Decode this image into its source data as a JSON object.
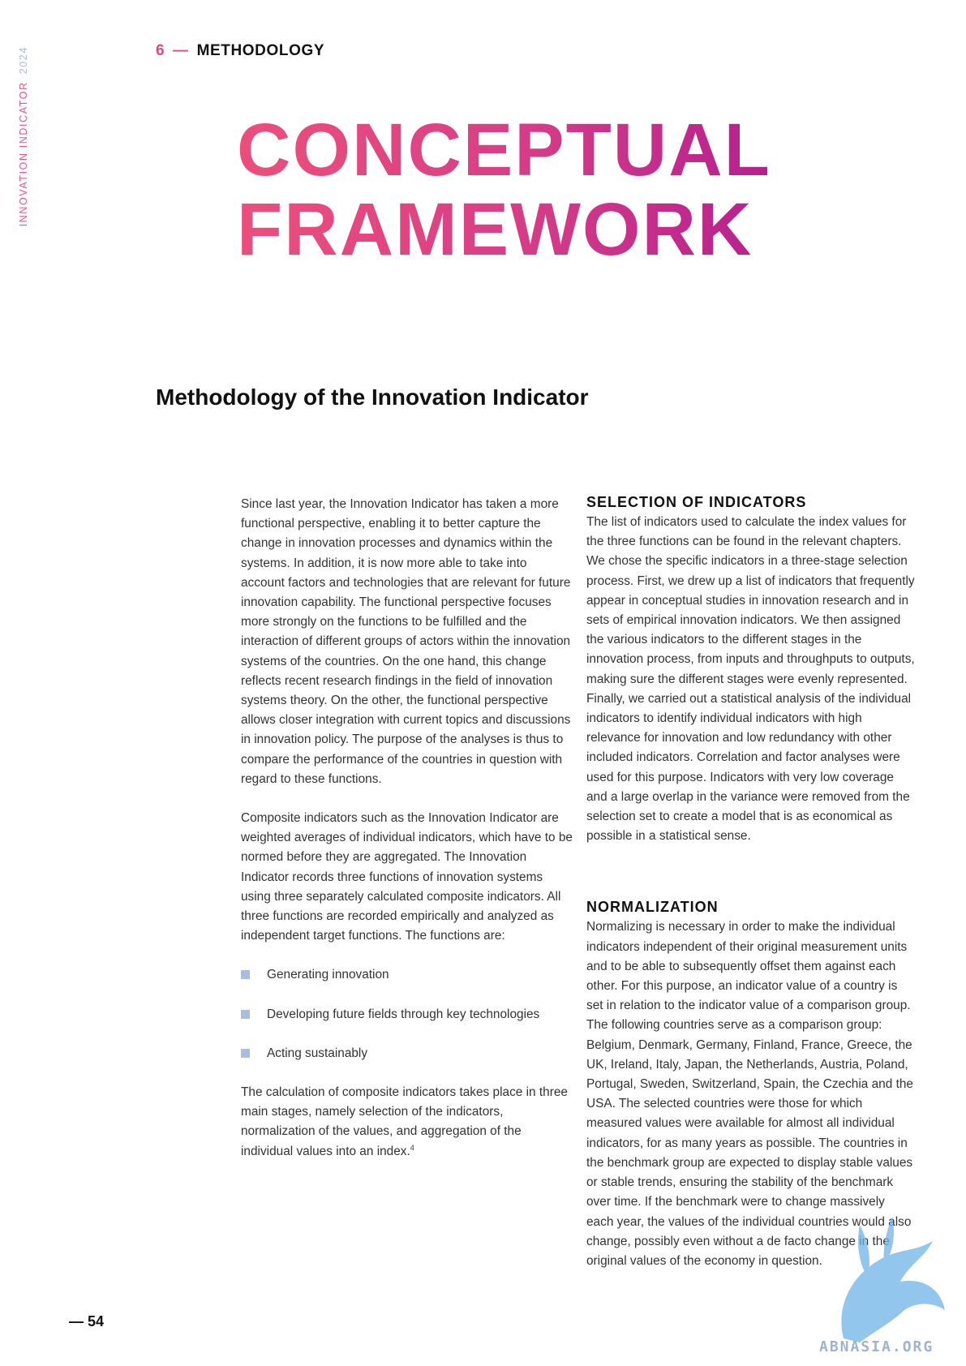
{
  "side_label": {
    "text": "INNOVATION INDICATOR",
    "year": "2024"
  },
  "section": {
    "number": "6",
    "dash": "—",
    "title": "METHODOLOGY"
  },
  "title": {
    "line1": "CONCEPTUAL",
    "line2": "FRAMEWORK"
  },
  "subtitle": "Methodology of the Innovation Indicator",
  "left_column": {
    "paragraph1": "Since last year, the Innovation Indicator has taken a more functional perspective, enabling it to better capture the change in innovation processes and dynamics within the systems. In addition, it is now more able to take into account factors and technologies that are relevant for future innovation capability. The functional perspective focuses more strongly on the functions to be fulfilled and the interaction of different groups of actors within the innovation systems of the countries. On the one hand, this change reflects recent research findings in the field of innovation systems theory. On the other, the functional perspective allows closer integration with current topics and discussions in innovation policy. The purpose of the analyses is thus to compare the performance of the countries in question with regard to these functions.",
    "paragraph2": "Composite indicators such as the Innovation Indicator are weighted averages of individual indicators, which have to be normed before they are aggregated. The Innovation Indicator records three functions of innovation systems using three separately calculated composite indicators. All three functions are recorded empirically and analyzed as independent target functions. The functions are:",
    "bullets": [
      "Generating innovation",
      "Developing future fields through key technologies",
      "Acting sustainably"
    ],
    "paragraph3": "The calculation of composite indicators takes place in three main stages, namely selection of the indicators, normalization of the values, and aggregation of the individual values into an index.",
    "footnote_ref": "4"
  },
  "right_column": {
    "heading1": "SELECTION OF INDICATORS",
    "paragraph1": "The list of indicators used to calculate the index values for the three functions can be found in the relevant chapters. We chose the specific indicators in a three-stage selection process. First, we drew up a list of indicators that frequently appear in conceptual studies in innovation research and in sets of empirical innovation indicators. We then assigned the various indicators to the different stages in the innovation process, from inputs and throughputs to outputs, making sure the different stages were evenly represented. Finally, we carried out a statistical analysis of the individual indicators to identify individual indicators with high relevance for innovation and low redundancy with other included indicators. Correlation and factor analyses were used for this purpose. Indicators with very low coverage and a large overlap in the variance were removed from the selection set to create a model that is as economical as possible in a statistical sense.",
    "heading2": "NORMALIZATION",
    "paragraph2": "Normalizing is necessary in order to make the individual indicators independent of their original measurement units and to be able to subsequently offset them against each other. For this purpose, an indicator value of a country is set in relation to the indicator value of a comparison group. The following countries serve as a comparison group: Belgium, Denmark, Germany, Finland, France, Greece, the UK, Ireland, Italy, Japan, the Netherlands, Austria, Poland, Portugal, Sweden, Switzerland, Spain, the Czechia and the USA. The selected countries were those for which measured values were available for almost all individual indicators, for as many years as possible. The countries in the benchmark group are expected to display stable values or stable trends, ensuring the stability of the benchmark over time. If the benchmark were to change massively each year, the values of the individual countries would also change, possibly even without a de facto change in the original values of the economy in question."
  },
  "page_number": "— 54",
  "watermark": "ABNASIA.ORG",
  "colors": {
    "accent_pink": "#e54580",
    "title_start": "#ec4f7c",
    "title_end": "#b5208f",
    "bullet": "#a9bde0"
  }
}
